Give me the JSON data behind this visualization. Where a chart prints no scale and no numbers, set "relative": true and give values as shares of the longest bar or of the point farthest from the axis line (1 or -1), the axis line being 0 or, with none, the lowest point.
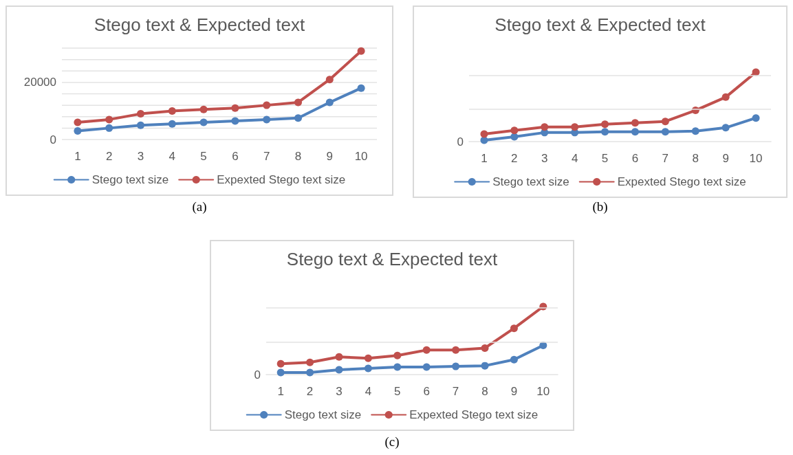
{
  "chart_data": [
    {
      "type": "line",
      "title": "Stego text & Expected text",
      "categories": [
        "1",
        "2",
        "3",
        "4",
        "5",
        "6",
        "7",
        "8",
        "9",
        "10"
      ],
      "series": [
        {
          "name": "Stego text size",
          "color": "#4f81bd",
          "values": [
            3000,
            4000,
            5000,
            5500,
            6000,
            6500,
            7000,
            7500,
            13000,
            18000
          ]
        },
        {
          "name": "Expexted Stego text size",
          "color": "#c0504d",
          "values": [
            6000,
            7000,
            9000,
            10000,
            10500,
            11000,
            12000,
            13000,
            21000,
            31000
          ]
        }
      ],
      "ylim": [
        0,
        32000
      ],
      "yticks": [
        0,
        {
          "value": 4000,
          "label": null
        },
        {
          "value": 8000,
          "label": null
        },
        {
          "value": 12000,
          "label": null
        },
        {
          "value": 16000,
          "label": null
        },
        20000,
        {
          "value": 24000,
          "label": null
        },
        {
          "value": 28000,
          "label": null
        },
        {
          "value": 32000,
          "label": null
        }
      ],
      "grid": "y",
      "legend": "bottom",
      "marker": "circle",
      "line_style": "solid",
      "annotations": [
        "(a)"
      ]
    },
    {
      "type": "line",
      "title": "Stego text & Expected text",
      "categories": [
        "1",
        "2",
        "3",
        "4",
        "5",
        "6",
        "7",
        "8",
        "9",
        "10"
      ],
      "relative": true,
      "series": [
        {
          "name": "Stego text size",
          "color": "#4f81bd",
          "values": [
            0.02,
            0.07,
            0.13,
            0.13,
            0.14,
            0.14,
            0.14,
            0.15,
            0.2,
            0.34
          ]
        },
        {
          "name": "Expexted Stego text size",
          "color": "#c0504d",
          "values": [
            0.11,
            0.16,
            0.21,
            0.21,
            0.25,
            0.27,
            0.29,
            0.45,
            0.64,
            1
          ]
        }
      ],
      "ref_lines": [
        {
          "axis": "y",
          "value": 0.47,
          "color": "#e3e3e3"
        },
        {
          "axis": "y",
          "value": 0.95,
          "color": "#e3e3e3"
        }
      ],
      "legend": "bottom",
      "marker": "circle",
      "line_style": "solid",
      "annotations": [
        "(b)",
        "0"
      ]
    },
    {
      "type": "line",
      "title": "Stego text & Expected text",
      "categories": [
        "1",
        "2",
        "3",
        "4",
        "5",
        "6",
        "7",
        "8",
        "9",
        "10"
      ],
      "relative": true,
      "series": [
        {
          "name": "Stego text size",
          "color": "#4f81bd",
          "values": [
            0.03,
            0.03,
            0.07,
            0.09,
            0.11,
            0.11,
            0.12,
            0.13,
            0.22,
            0.43
          ]
        },
        {
          "name": "Expexted Stego text size",
          "color": "#c0504d",
          "values": [
            0.16,
            0.18,
            0.26,
            0.24,
            0.28,
            0.36,
            0.36,
            0.39,
            0.68,
            1
          ]
        }
      ],
      "ref_lines": [
        {
          "axis": "y",
          "value": 0.48,
          "color": "#e3e3e3"
        },
        {
          "axis": "y",
          "value": 0.98,
          "color": "#e3e3e3"
        }
      ],
      "legend": "bottom",
      "marker": "circle",
      "line_style": "solid",
      "annotations": [
        "(c)",
        "0"
      ]
    }
  ]
}
